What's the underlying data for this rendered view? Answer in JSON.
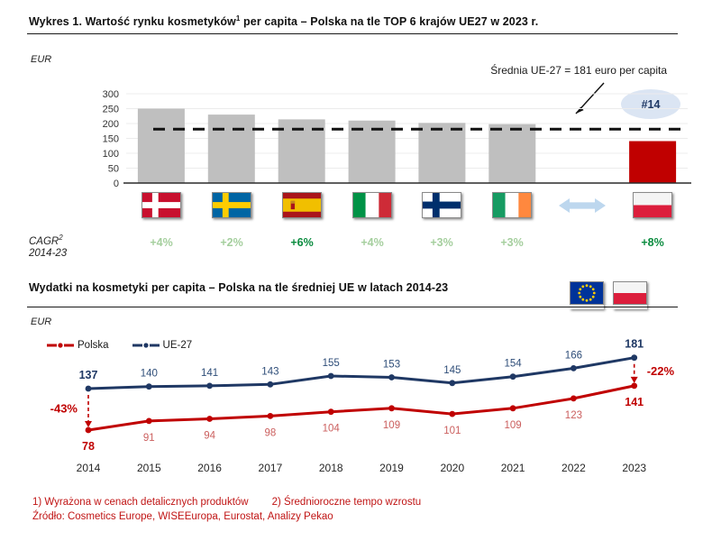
{
  "section1": {
    "title_main": "Wykres 1. Wartość rynku kosmetyków",
    "title_sup": "1",
    "title_tail": " per capita – Polska na tle TOP 6 krajów UE27 w 2023 r.",
    "unit_label": "EUR",
    "annotation": "Średnia UE-27 = 181 euro per capita",
    "rank_badge": "#14",
    "cagr_line1": "CAGR",
    "cagr_sup": "2",
    "cagr_line2": "2014-23",
    "comparison_arrow_icon": "double-horizontal-arrow",
    "arrow_color": "#bdd7ee"
  },
  "section2": {
    "title": "Wydatki na kosmetyki per capita – Polska na tle średniej UE w latach 2014-23",
    "unit_label": "EUR",
    "header_flags": [
      "eu",
      "poland"
    ],
    "legend": [
      {
        "label": "Polska",
        "color": "#c00000"
      },
      {
        "label": "UE-27",
        "color": "#1f3864"
      }
    ]
  },
  "footer": {
    "note1": "1) Wyrażona  w cenach detalicznych produktów",
    "note2": "2) Średnioroczne  tempo wzrostu",
    "source": "Źródło: Cosmetics Europe,  WISEEuropa,  Eurostat,  Analizy Pekao"
  },
  "chart_data": [
    {
      "type": "bar",
      "title": "Wartość rynku kosmetyków per capita – Polska na tle TOP 6 krajów UE27 w 2023 r.",
      "ylabel": "EUR",
      "categories": [
        "Dania",
        "Szwecja",
        "Hiszpania",
        "Włochy",
        "Finlandia",
        "Irlandia",
        "Polska"
      ],
      "flags": [
        "denmark",
        "sweden",
        "spain",
        "italy",
        "finland",
        "ireland",
        "poland"
      ],
      "values": [
        250,
        230,
        214,
        210,
        202,
        198,
        141
      ],
      "values_note": "estimated from axis, bars unlabeled",
      "cagr_2014_23": [
        "+4%",
        "+2%",
        "+6%",
        "+4%",
        "+3%",
        "+3%",
        "+8%"
      ],
      "cagr_emphasis": [
        false,
        false,
        true,
        false,
        false,
        false,
        true
      ],
      "highlight_index": 6,
      "bar_color": "#bfbfbf",
      "highlight_color": "#c00000",
      "reference_line": {
        "value": 181,
        "label": "Średnia UE-27 = 181 euro per capita",
        "style": "dashed-black"
      },
      "rank_annotation": "#14",
      "ylim": [
        0,
        300
      ],
      "yticks": [
        0,
        50,
        100,
        150,
        200,
        250,
        300
      ],
      "grid": true
    },
    {
      "type": "line",
      "title": "Wydatki na kosmetyki per capita – Polska na tle średniej UE w latach 2014-23",
      "ylabel": "EUR",
      "x": [
        2014,
        2015,
        2016,
        2017,
        2018,
        2019,
        2020,
        2021,
        2022,
        2023
      ],
      "series": [
        {
          "name": "Polska",
          "color": "#c00000",
          "label_color": "#cb5f5e",
          "values": [
            78,
            91,
            94,
            98,
            104,
            109,
            101,
            109,
            123,
            141
          ]
        },
        {
          "name": "UE-27",
          "color": "#1f3864",
          "label_color": "#2f4e79",
          "values": [
            137,
            140,
            141,
            143,
            155,
            153,
            145,
            154,
            166,
            181
          ]
        }
      ],
      "annotations": [
        {
          "x": 2014,
          "label": "-43%",
          "color": "#c00000"
        },
        {
          "x": 2023,
          "label": "-22%",
          "color": "#c00000"
        }
      ],
      "legend_position": "top-left",
      "grid": false
    }
  ]
}
